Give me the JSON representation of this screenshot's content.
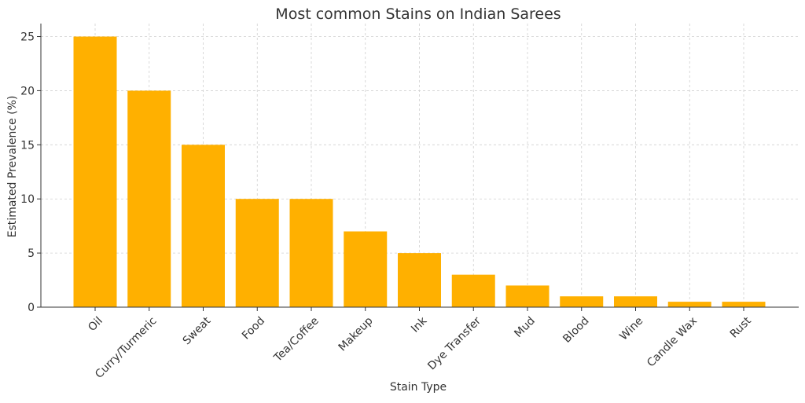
{
  "chart_data": {
    "type": "bar",
    "title": "Most common Stains on Indian Sarees",
    "xlabel": "Stain Type",
    "ylabel": "Estimated Prevalence (%)",
    "categories": [
      "Oil",
      "Curry/Turmeric",
      "Sweat",
      "Food",
      "Tea/Coffee",
      "Makeup",
      "Ink",
      "Dye Transfer",
      "Mud",
      "Blood",
      "Wine",
      "Candle Wax",
      "Rust"
    ],
    "values": [
      25,
      20,
      15,
      10,
      10,
      7,
      5,
      3,
      2,
      1,
      1,
      0.5,
      0.5
    ],
    "yticks": [
      "0",
      "5",
      "10",
      "15",
      "20",
      "25"
    ],
    "ylim": [
      0,
      26.2
    ],
    "grid": true,
    "bar_color": "#FFB000"
  }
}
